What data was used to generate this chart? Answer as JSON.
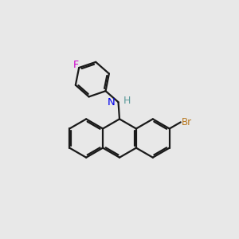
{
  "background_color": "#e8e8e8",
  "bond_color": "#1a1a1a",
  "N_color": "#0000ee",
  "H_color": "#5a9a9a",
  "Br_color": "#b87820",
  "F_color": "#cc00cc",
  "line_width": 1.6,
  "figsize": [
    3.0,
    3.0
  ],
  "dpi": 100,
  "xlim": [
    0,
    10
  ],
  "ylim": [
    0,
    10
  ]
}
